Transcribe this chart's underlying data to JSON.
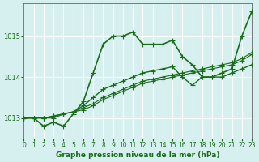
{
  "title": "Graphe pression niveau de la mer (hPa)",
  "bg_color": "#d6f0f0",
  "grid_color": "#ffffff",
  "line_color": "#1a6b1a",
  "xlim": [
    0,
    23
  ],
  "ylim": [
    1012.5,
    1015.8
  ],
  "yticks": [
    1013,
    1014,
    1015
  ],
  "xticks": [
    0,
    1,
    2,
    3,
    4,
    5,
    6,
    7,
    8,
    9,
    10,
    11,
    12,
    13,
    14,
    15,
    16,
    17,
    18,
    19,
    20,
    21,
    22,
    23
  ],
  "series1": {
    "x": [
      0,
      1,
      2,
      3,
      4,
      5,
      6,
      7,
      8,
      9,
      10,
      11,
      12,
      13,
      14,
      15,
      16,
      17,
      18,
      19,
      20,
      21,
      22,
      23
    ],
    "y": [
      1013.0,
      1013.0,
      1012.8,
      1012.9,
      1012.8,
      1013.1,
      1013.4,
      1014.1,
      1014.8,
      1015.0,
      1015.0,
      1015.1,
      1014.8,
      1014.8,
      1014.8,
      1014.9,
      1014.5,
      1014.3,
      1014.0,
      1014.0,
      1014.1,
      1014.2,
      1015.0,
      1015.6
    ]
  },
  "series2": {
    "x": [
      0,
      1,
      2,
      3,
      4,
      5,
      6,
      7,
      8,
      9,
      10,
      11,
      12,
      13,
      14,
      15,
      16,
      17,
      18,
      19,
      20,
      21,
      22,
      23
    ],
    "y": [
      1013.0,
      1013.0,
      1013.0,
      1013.05,
      1013.1,
      1013.15,
      1013.2,
      1013.3,
      1013.45,
      1013.55,
      1013.65,
      1013.75,
      1013.85,
      1013.9,
      1013.95,
      1014.0,
      1014.05,
      1014.1,
      1014.15,
      1014.2,
      1014.25,
      1014.3,
      1014.4,
      1014.55
    ]
  },
  "series3": {
    "x": [
      0,
      1,
      2,
      3,
      4,
      5,
      6,
      7,
      8,
      9,
      10,
      11,
      12,
      13,
      14,
      15,
      16,
      17,
      18,
      19,
      20,
      21,
      22,
      23
    ],
    "y": [
      1013.0,
      1013.0,
      1013.0,
      1013.05,
      1013.1,
      1013.15,
      1013.25,
      1013.35,
      1013.5,
      1013.6,
      1013.7,
      1013.8,
      1013.9,
      1013.95,
      1014.0,
      1014.05,
      1014.1,
      1014.15,
      1014.2,
      1014.25,
      1014.3,
      1014.35,
      1014.45,
      1014.6
    ]
  },
  "series4": {
    "x": [
      0,
      1,
      2,
      3,
      4,
      5,
      6,
      7,
      8,
      9,
      10,
      11,
      12,
      13,
      14,
      15,
      16,
      17,
      18,
      19,
      20,
      21,
      22,
      23
    ],
    "y": [
      1013.0,
      1013.0,
      1013.0,
      1013.0,
      1013.1,
      1013.15,
      1013.3,
      1013.5,
      1013.7,
      1013.8,
      1013.9,
      1014.0,
      1014.1,
      1014.15,
      1014.2,
      1014.25,
      1014.0,
      1013.8,
      1014.0,
      1014.0,
      1014.0,
      1014.1,
      1014.2,
      1014.3
    ]
  }
}
